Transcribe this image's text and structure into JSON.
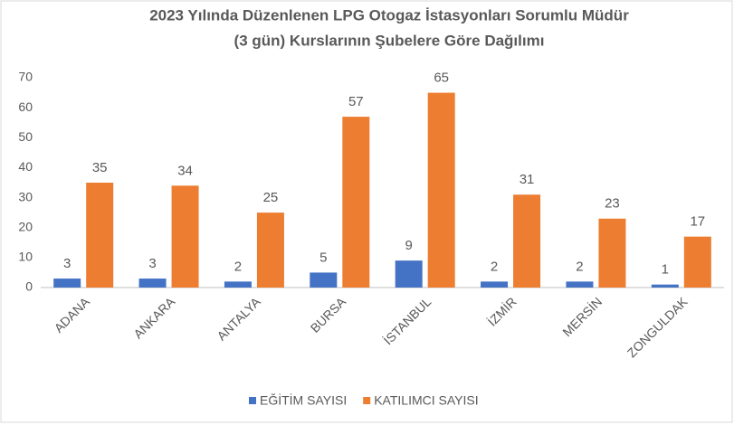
{
  "chart_data": {
    "type": "bar",
    "title": [
      "2023 Yılında Düzenlenen LPG Otogaz İstasyonları Sorumlu Müdür",
      "(3 gün) Kurslarının Şubelere Göre  Dağılımı"
    ],
    "categories": [
      "ADANA",
      "ANKARA",
      "ANTALYA",
      "BURSA",
      "İSTANBUL",
      "İZMİR",
      "MERSİN",
      "ZONGULDAK"
    ],
    "series": [
      {
        "name": "EĞİTİM SAYISI",
        "color": "#4472c4",
        "values": [
          3,
          3,
          2,
          5,
          9,
          2,
          2,
          1
        ]
      },
      {
        "name": "KATILIMCI SAYISI",
        "color": "#ed7d31",
        "values": [
          35,
          34,
          25,
          57,
          65,
          31,
          23,
          17
        ]
      }
    ],
    "ylim": [
      0,
      70
    ],
    "yticks": [
      0,
      10,
      20,
      30,
      40,
      50,
      60,
      70
    ],
    "grid": false,
    "legend": "bottom"
  }
}
